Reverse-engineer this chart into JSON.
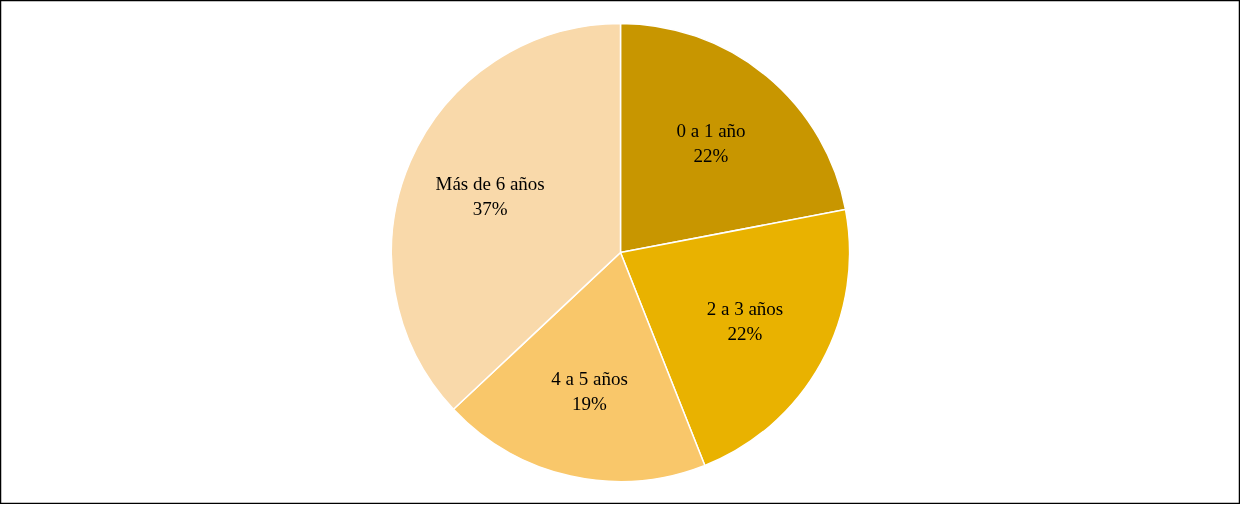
{
  "chart_data": {
    "type": "pie",
    "categories": [
      "0 a 1 año",
      "2 a 3 años",
      "4 a 5 años",
      "Más de 6 años"
    ],
    "values": [
      22,
      22,
      19,
      37
    ],
    "value_labels": [
      "22%",
      "22%",
      "19%",
      "37%"
    ],
    "colors": [
      "#c89600",
      "#e9b200",
      "#f9c76a",
      "#f9d9aa"
    ]
  }
}
